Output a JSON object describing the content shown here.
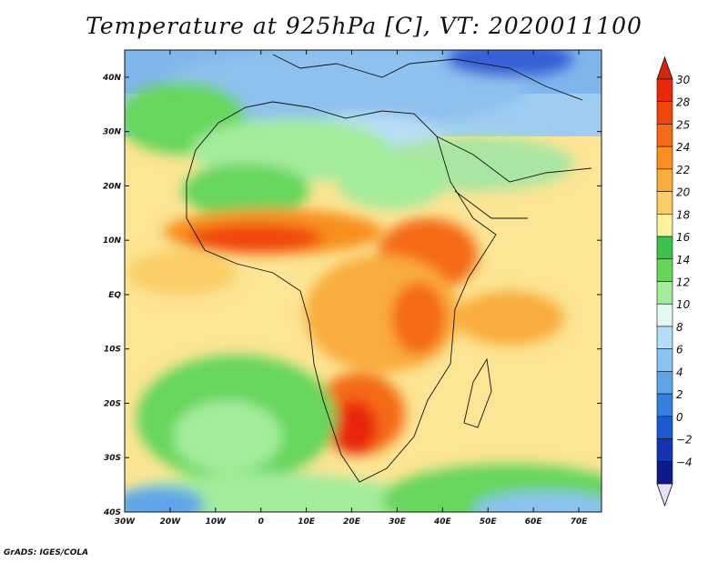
{
  "title": "Temperature at 925hPa [C], VT: 2020011100",
  "footer": "GrADS: IGES/COLA",
  "map": {
    "lon_range": [
      -30,
      75
    ],
    "lat_range": [
      -40,
      45
    ],
    "lon_ticks": [
      {
        "value": -30,
        "label": "30W"
      },
      {
        "value": -20,
        "label": "20W"
      },
      {
        "value": -10,
        "label": "10W"
      },
      {
        "value": 0,
        "label": "0"
      },
      {
        "value": 10,
        "label": "10E"
      },
      {
        "value": 20,
        "label": "20E"
      },
      {
        "value": 30,
        "label": "30E"
      },
      {
        "value": 40,
        "label": "40E"
      },
      {
        "value": 50,
        "label": "50E"
      },
      {
        "value": 60,
        "label": "60E"
      },
      {
        "value": 70,
        "label": "70E"
      }
    ],
    "lat_ticks": [
      {
        "value": 40,
        "label": "40N"
      },
      {
        "value": 30,
        "label": "30N"
      },
      {
        "value": 20,
        "label": "20N"
      },
      {
        "value": 10,
        "label": "10N"
      },
      {
        "value": 0,
        "label": "EQ"
      },
      {
        "value": -10,
        "label": "10S"
      },
      {
        "value": -20,
        "label": "20S"
      },
      {
        "value": -30,
        "label": "30S"
      },
      {
        "value": -40,
        "label": "40S"
      }
    ]
  },
  "colorbar": {
    "levels": [
      {
        "label": "30",
        "color": "#e8280a"
      },
      {
        "label": "28",
        "color": "#f0460c"
      },
      {
        "label": "25",
        "color": "#f56a14"
      },
      {
        "label": "24",
        "color": "#f88f1f"
      },
      {
        "label": "22",
        "color": "#f9ad3d"
      },
      {
        "label": "20",
        "color": "#fbcd66"
      },
      {
        "label": "18",
        "color": "#fdf0a0"
      },
      {
        "label": "16",
        "color": "#3cc24a"
      },
      {
        "label": "14",
        "color": "#66d65b"
      },
      {
        "label": "12",
        "color": "#a3ec9b"
      },
      {
        "label": "10",
        "color": "#e3f8f0"
      },
      {
        "label": "8",
        "color": "#b5ddf7"
      },
      {
        "label": "6",
        "color": "#8bc3f0"
      },
      {
        "label": "4",
        "color": "#5fa4e8"
      },
      {
        "label": "2",
        "color": "#3380de"
      },
      {
        "label": "0",
        "color": "#1c58cf"
      },
      {
        "label": "−2",
        "color": "#1534b5"
      },
      {
        "label": "−4",
        "color": "#0c1a8a"
      }
    ],
    "top_color": "#d8240c",
    "bottom_color": "#e6e0f8"
  }
}
